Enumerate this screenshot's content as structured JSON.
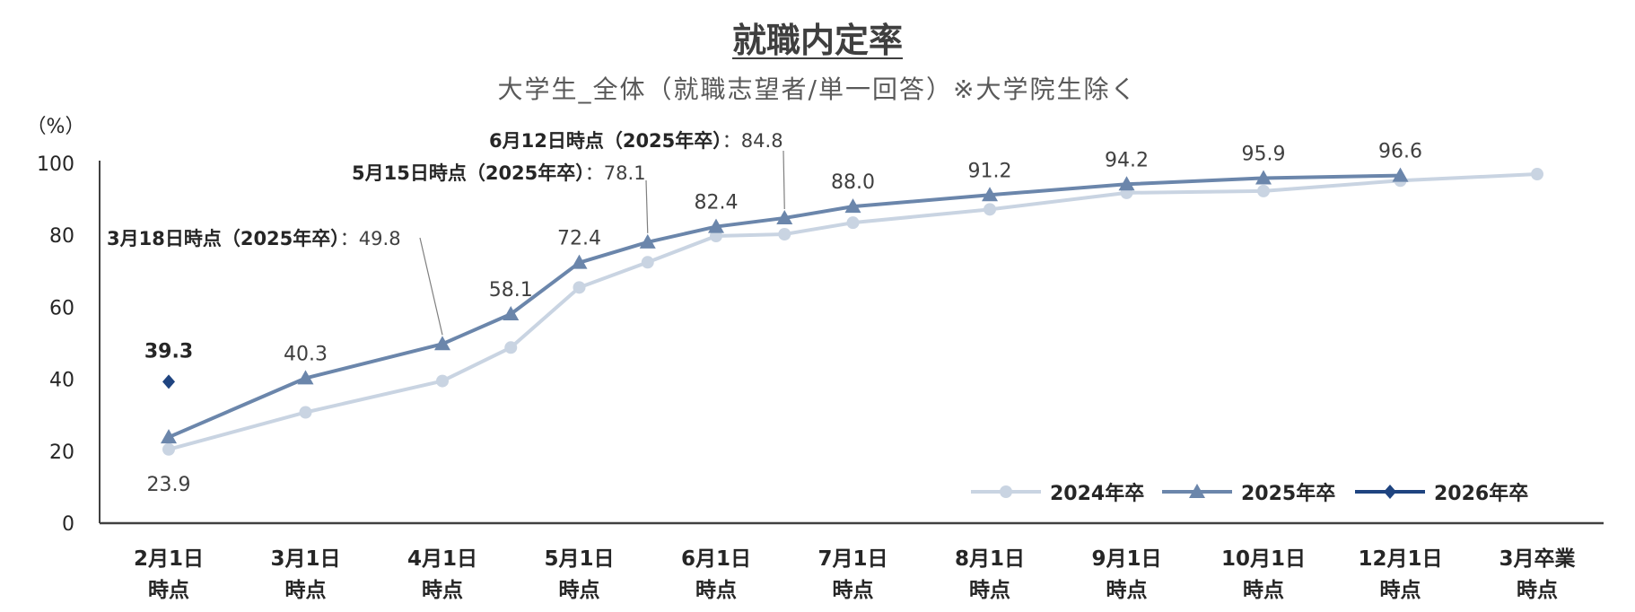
{
  "chart_data": {
    "type": "line",
    "title": "就職内定率",
    "subtitle": "大学生_全体（就職志望者/単一回答）※大学院生除く",
    "ylabel": "（%）",
    "ylim": [
      0,
      100
    ],
    "yticks": [
      0,
      20,
      40,
      60,
      80,
      100
    ],
    "categories": [
      [
        "2月1日",
        "時点"
      ],
      [
        "3月1日",
        "時点"
      ],
      [
        "4月1日",
        "時点"
      ],
      [
        "5月1日",
        "時点"
      ],
      [
        "6月1日",
        "時点"
      ],
      [
        "7月1日",
        "時点"
      ],
      [
        "8月1日",
        "時点"
      ],
      [
        "9月1日",
        "時点"
      ],
      [
        "10月1日",
        "時点"
      ],
      [
        "12月1日",
        "時点"
      ],
      [
        "3月卒業",
        "時点"
      ]
    ],
    "series": [
      {
        "name": "2024年卒",
        "color": "#c9d4e2",
        "marker": "circle",
        "points": [
          {
            "x": 0,
            "y": 20.5
          },
          {
            "x": 1,
            "y": 30.8
          },
          {
            "x": 2,
            "y": 39.5
          },
          {
            "x": 2.5,
            "y": 48.8
          },
          {
            "x": 3,
            "y": 65.5
          },
          {
            "x": 3.5,
            "y": 72.5
          },
          {
            "x": 4,
            "y": 79.8
          },
          {
            "x": 4.5,
            "y": 80.3
          },
          {
            "x": 5,
            "y": 83.5
          },
          {
            "x": 6,
            "y": 87.2
          },
          {
            "x": 7,
            "y": 91.8
          },
          {
            "x": 8,
            "y": 92.3
          },
          {
            "x": 9,
            "y": 95.2
          },
          {
            "x": 10,
            "y": 97.0
          }
        ]
      },
      {
        "name": "2025年卒",
        "color": "#6b86ab",
        "marker": "triangle",
        "points": [
          {
            "x": 0,
            "y": 23.9,
            "label": "23.9"
          },
          {
            "x": 1,
            "y": 40.3,
            "label": "40.3"
          },
          {
            "x": 2,
            "y": 49.8
          },
          {
            "x": 2.5,
            "y": 58.1,
            "label": "58.1"
          },
          {
            "x": 3,
            "y": 72.4,
            "label": "72.4"
          },
          {
            "x": 3.5,
            "y": 78.1
          },
          {
            "x": 4,
            "y": 82.4,
            "label": "82.4"
          },
          {
            "x": 4.5,
            "y": 84.8
          },
          {
            "x": 5,
            "y": 88.0,
            "label": "88.0"
          },
          {
            "x": 6,
            "y": 91.2,
            "label": "91.2"
          },
          {
            "x": 7,
            "y": 94.2,
            "label": "94.2"
          },
          {
            "x": 8,
            "y": 95.9,
            "label": "95.9"
          },
          {
            "x": 9,
            "y": 96.6,
            "label": "96.6"
          }
        ]
      },
      {
        "name": "2026年卒",
        "color": "#1f4480",
        "marker": "diamond",
        "points": [
          {
            "x": 0,
            "y": 39.3,
            "label": "39.3"
          }
        ]
      }
    ],
    "annotations": [
      {
        "x": 2,
        "y": 49.8,
        "prefix": "3月18日時点（2025年卒）",
        "value": "：49.8"
      },
      {
        "x": 3.5,
        "y": 78.1,
        "prefix": "5月15日時点（2025年卒）",
        "value": "：78.1"
      },
      {
        "x": 4.5,
        "y": 84.8,
        "prefix": "6月12日時点（2025年卒）",
        "value": "：84.8"
      }
    ],
    "legend": [
      "2024年卒",
      "2025年卒",
      "2026年卒"
    ],
    "legend_position": "bottom-right"
  }
}
